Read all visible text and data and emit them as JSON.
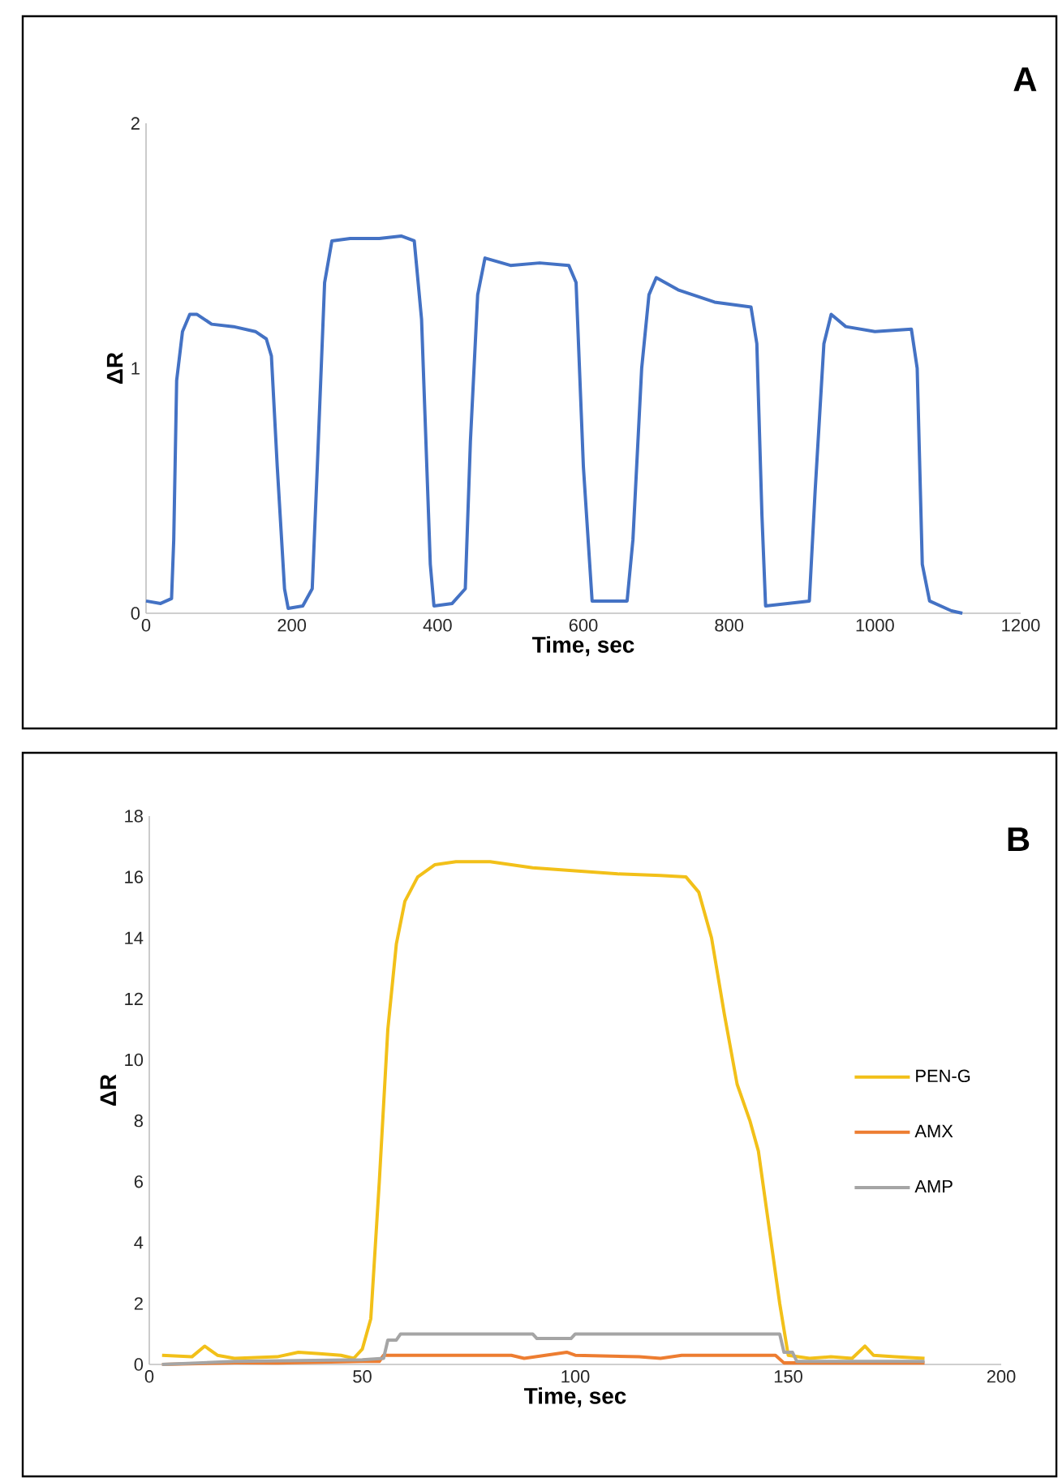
{
  "chart_data": [
    {
      "type": "line",
      "title": "A",
      "xlabel": "Time, sec",
      "ylabel": "ΔR",
      "xlim": [
        0,
        1200
      ],
      "ylim": [
        0,
        2
      ],
      "xticks": [
        0,
        200,
        400,
        600,
        800,
        1000,
        1200
      ],
      "yticks": [
        0,
        1,
        2
      ],
      "series": [
        {
          "color": "#4472c4",
          "x": [
            0,
            20,
            35,
            38,
            42,
            50,
            60,
            70,
            90,
            120,
            150,
            165,
            172,
            180,
            190,
            195,
            215,
            228,
            235,
            245,
            255,
            280,
            320,
            350,
            368,
            378,
            390,
            395,
            420,
            438,
            445,
            455,
            465,
            500,
            540,
            580,
            590,
            600,
            612,
            660,
            668,
            680,
            690,
            700,
            730,
            780,
            830,
            838,
            845,
            850,
            880,
            910,
            918,
            930,
            940,
            960,
            1000,
            1050,
            1058,
            1065,
            1075,
            1090,
            1105,
            1120
          ],
          "values": [
            0.05,
            0.04,
            0.06,
            0.3,
            0.95,
            1.15,
            1.22,
            1.22,
            1.18,
            1.17,
            1.15,
            1.12,
            1.05,
            0.6,
            0.1,
            0.02,
            0.03,
            0.1,
            0.6,
            1.35,
            1.52,
            1.53,
            1.53,
            1.54,
            1.52,
            1.2,
            0.2,
            0.03,
            0.04,
            0.1,
            0.7,
            1.3,
            1.45,
            1.42,
            1.43,
            1.42,
            1.35,
            0.6,
            0.05,
            0.05,
            0.3,
            1.0,
            1.3,
            1.37,
            1.32,
            1.27,
            1.25,
            1.1,
            0.4,
            0.03,
            0.04,
            0.05,
            0.5,
            1.1,
            1.22,
            1.17,
            1.15,
            1.16,
            1.0,
            0.2,
            0.05,
            0.03,
            0.01,
            0.0
          ]
        }
      ]
    },
    {
      "type": "line",
      "title": "B",
      "xlabel": "Time, sec",
      "ylabel": "ΔR",
      "xlim": [
        0,
        200
      ],
      "ylim": [
        0,
        18
      ],
      "xticks": [
        0,
        50,
        100,
        150,
        200
      ],
      "yticks": [
        0,
        2,
        4,
        6,
        8,
        10,
        12,
        14,
        16,
        18
      ],
      "legend": "right",
      "series": [
        {
          "name": "PEN-G",
          "color": "#f2c019",
          "x": [
            3,
            10,
            13,
            16,
            20,
            30,
            35,
            40,
            45,
            48,
            50,
            52,
            54,
            56,
            58,
            60,
            63,
            67,
            72,
            80,
            90,
            100,
            110,
            120,
            126,
            129,
            132,
            135,
            138,
            141,
            143,
            145,
            148,
            150,
            155,
            160,
            165,
            168,
            170,
            175,
            182
          ],
          "values": [
            0.3,
            0.25,
            0.6,
            0.3,
            0.2,
            0.25,
            0.4,
            0.35,
            0.3,
            0.2,
            0.5,
            1.5,
            6,
            11,
            13.8,
            15.2,
            16.0,
            16.4,
            16.5,
            16.5,
            16.3,
            16.2,
            16.1,
            16.05,
            16.0,
            15.5,
            14,
            11.5,
            9.2,
            8.0,
            7.0,
            5,
            2,
            0.3,
            0.2,
            0.25,
            0.2,
            0.6,
            0.3,
            0.25,
            0.2
          ]
        },
        {
          "name": "AMX",
          "color": "#ed7d31",
          "x": [
            3,
            20,
            30,
            50,
            54,
            55,
            70,
            85,
            88,
            98,
            100,
            115,
            120,
            125,
            147,
            149,
            160,
            182
          ],
          "values": [
            0.0,
            0.05,
            0.05,
            0.1,
            0.1,
            0.3,
            0.3,
            0.3,
            0.2,
            0.4,
            0.3,
            0.25,
            0.2,
            0.3,
            0.3,
            0.05,
            0.05,
            0.05
          ]
        },
        {
          "name": "AMP",
          "color": "#a5a5a5",
          "x": [
            3,
            20,
            50,
            55,
            56,
            58,
            59,
            90,
            91,
            99,
            100,
            148,
            149,
            151,
            152,
            182
          ],
          "values": [
            0.0,
            0.1,
            0.15,
            0.2,
            0.8,
            0.8,
            1.0,
            1.0,
            0.85,
            0.85,
            1.0,
            1.0,
            0.4,
            0.4,
            0.1,
            0.1
          ]
        }
      ]
    }
  ]
}
